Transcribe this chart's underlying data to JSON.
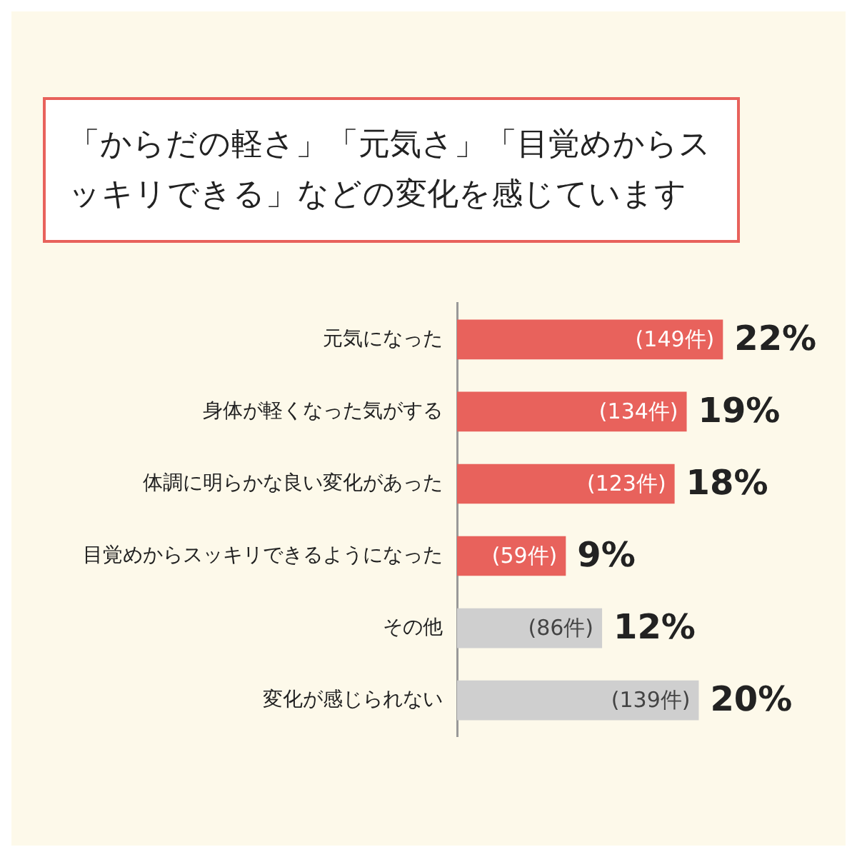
{
  "chart_data": {
    "type": "bar",
    "orientation": "horizontal",
    "title": "「からだの軽さ」「元気さ」「目覚めからスッキリできる」などの変化を感じています",
    "categories": [
      "元気になった",
      "身体が軽くなった気がする",
      "体調に明らかな良い変化があった",
      "目覚めからスッキリできるようになった",
      "その他",
      "変化が感じられない"
    ],
    "values": [
      22,
      19,
      18,
      9,
      12,
      20
    ],
    "colors": [
      "#e8625c",
      "#e8625c",
      "#e8625c",
      "#e8625c",
      "#cfcfcf",
      "#cfcfcf"
    ],
    "value_labels": [
      "22%",
      "19%",
      "18%",
      "9%",
      "12%",
      "20%"
    ],
    "annotations": [
      {
        "text": "(149件)",
        "x": 22,
        "y": "元気になった"
      },
      {
        "text": "(134件)",
        "x": 19,
        "y": "身体が軽くなった気がする"
      },
      {
        "text": "(123件)",
        "x": 18,
        "y": "体調に明らかな良い変化があった"
      },
      {
        "text": "(59件)",
        "x": 9,
        "y": "目覚めからスッキリできるようになった"
      },
      {
        "text": "(86件)",
        "x": 12,
        "y": "その他"
      },
      {
        "text": "(139件)",
        "x": 20,
        "y": "変化が感じられない"
      }
    ],
    "grid": false,
    "legend": false
  }
}
